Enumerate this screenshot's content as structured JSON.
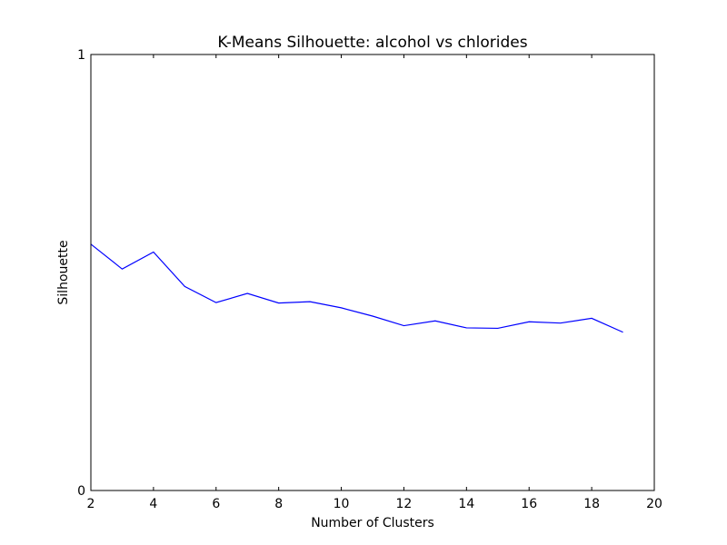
{
  "chart_data": {
    "type": "line",
    "title": "K-Means Silhouette: alcohol vs chlorides",
    "xlabel": "Number of Clusters",
    "ylabel": "Silhouette",
    "xlim": [
      2,
      20
    ],
    "ylim": [
      0,
      1
    ],
    "xticks": [
      2,
      4,
      6,
      8,
      10,
      12,
      14,
      16,
      18,
      20
    ],
    "yticks": [
      0,
      1
    ],
    "grid": false,
    "series": [
      {
        "color": "#0000ff",
        "x": [
          2,
          3,
          4,
          5,
          6,
          7,
          8,
          9,
          10,
          11,
          12,
          13,
          14,
          15,
          16,
          17,
          18,
          19
        ],
        "y": [
          0.565,
          0.508,
          0.547,
          0.468,
          0.431,
          0.452,
          0.43,
          0.433,
          0.419,
          0.4,
          0.378,
          0.389,
          0.373,
          0.372,
          0.387,
          0.384,
          0.395,
          0.363
        ]
      }
    ]
  }
}
